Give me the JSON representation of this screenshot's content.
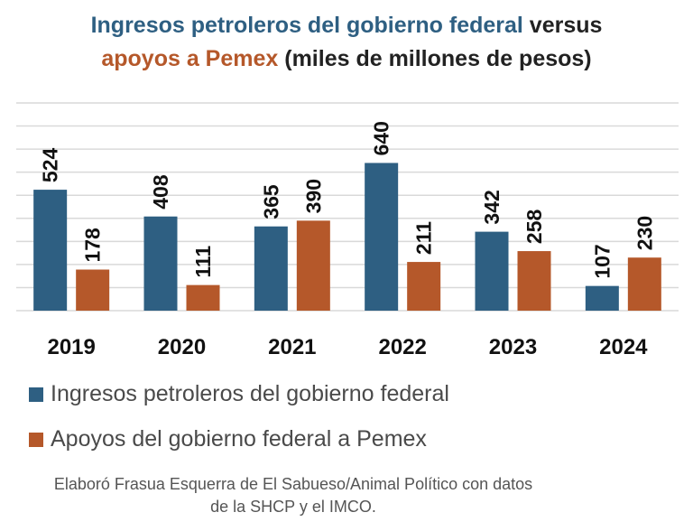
{
  "title": {
    "line1_blue": "Ingresos petroleros del gobierno federal",
    "line1_dark": " versus",
    "line2_orange": "apoyos a Pemex",
    "line2_dark": " (miles de millones de pesos)"
  },
  "colors": {
    "series1": "#2e5f82",
    "series2": "#b5582a",
    "grid": "#d9d9d9",
    "title_dark": "#222222"
  },
  "chart_data": {
    "type": "bar",
    "title": "Ingresos petroleros del gobierno federal versus apoyos a Pemex (miles de millones de pesos)",
    "categories": [
      "2019",
      "2020",
      "2021",
      "2022",
      "2023",
      "2024"
    ],
    "series": [
      {
        "name": "Ingresos petroleros del gobierno federal",
        "values": [
          524,
          408,
          365,
          640,
          342,
          107
        ]
      },
      {
        "name": "Apoyos del gobierno federal a Pemex",
        "values": [
          178,
          111,
          390,
          211,
          258,
          230
        ]
      }
    ],
    "ylim": [
      0,
      900
    ],
    "grid_step": 100,
    "grid": true,
    "legend": "bottom",
    "xlabel": "",
    "ylabel": ""
  },
  "source": {
    "line1": "Elaboró Frasua Esquerra de El Sabueso/Animal Político con datos",
    "line2": "de la SHCP y el IMCO."
  }
}
